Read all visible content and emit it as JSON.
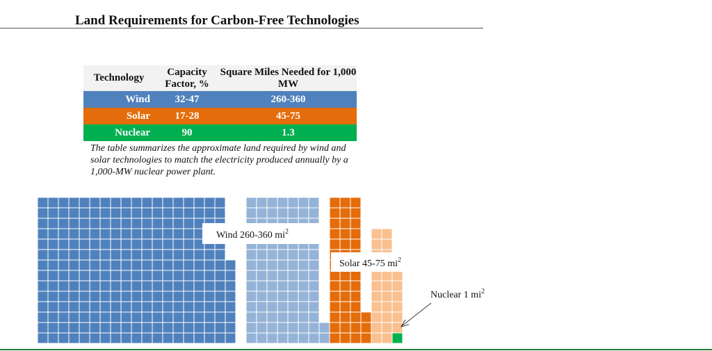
{
  "title": "Land Requirements for Carbon-Free Technologies",
  "table": {
    "headers": [
      "Technology",
      "Capacity Factor, %",
      "Square Miles Needed for 1,000 MW"
    ],
    "rows": [
      {
        "technology": "Wind",
        "capacity_factor": "32-47",
        "square_miles": "260-360",
        "color": "#4f81bd"
      },
      {
        "technology": "Solar",
        "capacity_factor": "17-28",
        "square_miles": "45-75",
        "color": "#e46c0a"
      },
      {
        "technology": "Nuclear",
        "capacity_factor": "90",
        "square_miles": "1.3",
        "color": "#00b050"
      }
    ]
  },
  "caption": "The table summarizes the approximate land required by wind and solar technologies to match the electricity produced annually by a 1,000-MW nuclear power plant.",
  "chart_data": {
    "type": "waffle",
    "unit": "1 square = 1 square mile",
    "series": [
      {
        "name": "Wind",
        "label": "Wind 260-360 mi",
        "sup": "2",
        "min": 260,
        "max": 360,
        "color_min": "#4f81bd",
        "color_extra": "#95b3d7"
      },
      {
        "name": "Solar",
        "label": "Solar 45-75 mi",
        "sup": "2",
        "min": 45,
        "max": 75,
        "color_min": "#e46c0a",
        "color_extra": "#fac090"
      },
      {
        "name": "Nuclear",
        "label": "Nuclear 1 mi",
        "sup": "2",
        "min": 1,
        "max": 1,
        "color_min": "#00b050",
        "color_extra": "#00b050"
      }
    ]
  }
}
